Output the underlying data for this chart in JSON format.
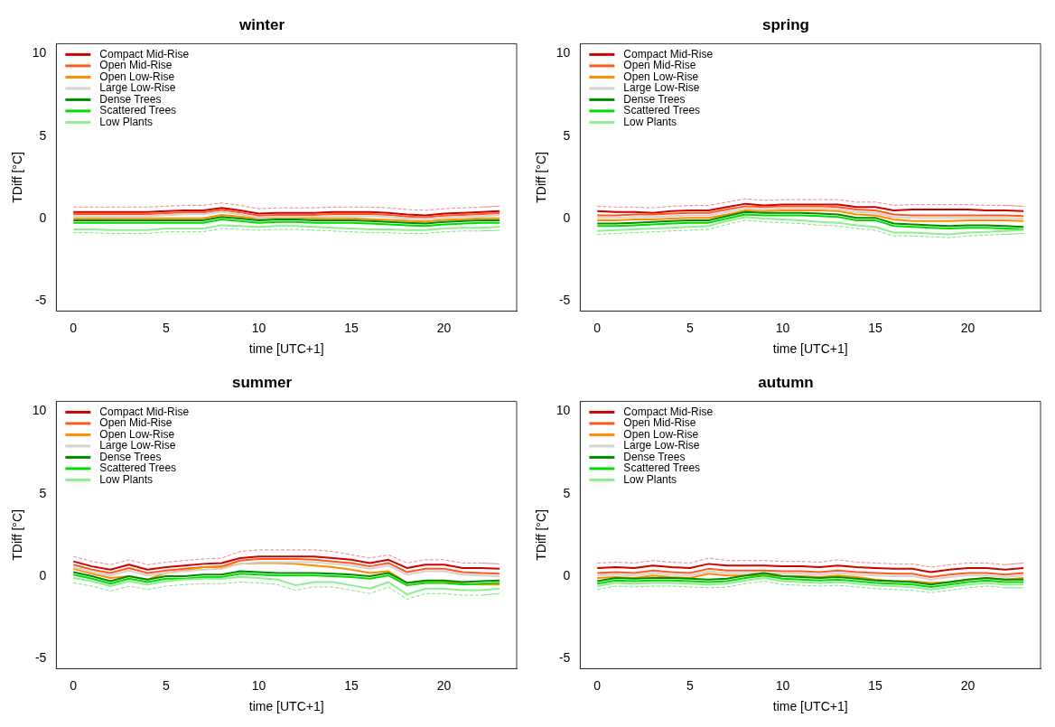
{
  "chart_data": [
    {
      "type": "line",
      "title": "winter",
      "xlabel": "time [UTC+1]",
      "ylabel": "TDiff [°C]",
      "x": [
        0,
        1,
        2,
        3,
        4,
        5,
        6,
        7,
        8,
        9,
        10,
        11,
        12,
        13,
        14,
        15,
        16,
        17,
        18,
        19,
        20,
        21,
        22,
        23
      ],
      "xlim": [
        -0.92,
        23.92
      ],
      "xticks": [
        0,
        5,
        10,
        15,
        20
      ],
      "ylim": [
        -5.6,
        10.6
      ],
      "yticks": [
        -5,
        0,
        5,
        10
      ],
      "grid": false,
      "legend": "top left",
      "line_style": "solid",
      "series": [
        {
          "name": "Compact Mid-Rise",
          "color": "#cc0000",
          "values": [
            0.4,
            0.4,
            0.4,
            0.4,
            0.4,
            0.45,
            0.5,
            0.5,
            0.65,
            0.5,
            0.3,
            0.35,
            0.35,
            0.35,
            0.4,
            0.4,
            0.4,
            0.35,
            0.25,
            0.2,
            0.3,
            0.35,
            0.4,
            0.45
          ]
        },
        {
          "name": "Open Mid-Rise",
          "color": "#ff5a1e",
          "values": [
            0.28,
            0.28,
            0.28,
            0.28,
            0.28,
            0.33,
            0.38,
            0.38,
            0.53,
            0.38,
            0.18,
            0.23,
            0.23,
            0.23,
            0.28,
            0.28,
            0.28,
            0.23,
            0.13,
            0.08,
            0.18,
            0.23,
            0.28,
            0.33
          ]
        },
        {
          "name": "Open Low-Rise",
          "color": "#ff8c00",
          "values": [
            0.02,
            0.02,
            0.02,
            0.02,
            0.02,
            0.02,
            0.02,
            0.02,
            0.22,
            0.12,
            0.02,
            0.07,
            0.07,
            0.02,
            0.02,
            0.02,
            -0.03,
            -0.08,
            -0.13,
            -0.18,
            -0.08,
            -0.03,
            0.02,
            0.02
          ]
        },
        {
          "name": "Large Low-Rise",
          "color": "#d3d3d3",
          "values": [
            0.16,
            0.16,
            0.16,
            0.16,
            0.16,
            0.21,
            0.26,
            0.26,
            0.41,
            0.26,
            0.06,
            0.11,
            0.11,
            0.11,
            0.16,
            0.16,
            0.16,
            0.11,
            0.01,
            -0.04,
            0.06,
            0.11,
            0.16,
            0.21
          ]
        },
        {
          "name": "Dense Trees",
          "color": "#008b00",
          "values": [
            -0.1,
            -0.1,
            -0.1,
            -0.1,
            -0.1,
            -0.1,
            -0.1,
            -0.1,
            0.1,
            0.0,
            -0.1,
            -0.05,
            -0.05,
            -0.1,
            -0.1,
            -0.1,
            -0.15,
            -0.2,
            -0.25,
            -0.3,
            -0.2,
            -0.15,
            -0.1,
            -0.1
          ]
        },
        {
          "name": "Scattered Trees",
          "color": "#00dd00",
          "values": [
            -0.25,
            -0.25,
            -0.25,
            -0.25,
            -0.25,
            -0.25,
            -0.25,
            -0.25,
            -0.05,
            -0.15,
            -0.25,
            -0.2,
            -0.2,
            -0.25,
            -0.25,
            -0.25,
            -0.3,
            -0.35,
            -0.4,
            -0.45,
            -0.35,
            -0.3,
            -0.25,
            -0.25
          ]
        },
        {
          "name": "Low Plants",
          "color": "#90ee90",
          "values": [
            -0.65,
            -0.65,
            -0.7,
            -0.7,
            -0.7,
            -0.6,
            -0.6,
            -0.6,
            -0.4,
            -0.45,
            -0.5,
            -0.45,
            -0.45,
            -0.5,
            -0.55,
            -0.6,
            -0.65,
            -0.65,
            -0.7,
            -0.7,
            -0.6,
            -0.55,
            -0.55,
            -0.5
          ]
        },
        {
          "color": "#ee8888",
          "line_style": "dashed",
          "values": [
            0.7,
            0.7,
            0.7,
            0.7,
            0.7,
            0.75,
            0.8,
            0.8,
            0.95,
            0.8,
            0.6,
            0.65,
            0.65,
            0.65,
            0.7,
            0.7,
            0.7,
            0.65,
            0.55,
            0.5,
            0.6,
            0.65,
            0.7,
            0.75
          ]
        },
        {
          "color": "#80e080",
          "line_style": "dashed",
          "values": [
            -0.85,
            -0.85,
            -0.9,
            -0.9,
            -0.9,
            -0.8,
            -0.8,
            -0.8,
            -0.6,
            -0.65,
            -0.7,
            -0.65,
            -0.65,
            -0.7,
            -0.75,
            -0.8,
            -0.85,
            -0.85,
            -0.9,
            -0.9,
            -0.8,
            -0.75,
            -0.75,
            -0.7
          ]
        }
      ]
    },
    {
      "type": "line",
      "title": "spring",
      "xlabel": "time [UTC+1]",
      "ylabel": "TDiff [°C]",
      "x": [
        0,
        1,
        2,
        3,
        4,
        5,
        6,
        7,
        8,
        9,
        10,
        11,
        12,
        13,
        14,
        15,
        16,
        17,
        18,
        19,
        20,
        21,
        22,
        23
      ],
      "xlim": [
        -0.92,
        23.92
      ],
      "xticks": [
        0,
        5,
        10,
        15,
        20
      ],
      "ylim": [
        -5.6,
        10.6
      ],
      "yticks": [
        -5,
        0,
        5,
        10
      ],
      "grid": false,
      "legend": "top left",
      "line_style": "solid",
      "series": [
        {
          "name": "Compact Mid-Rise",
          "color": "#cc0000",
          "values": [
            0.45,
            0.4,
            0.4,
            0.35,
            0.45,
            0.5,
            0.5,
            0.7,
            0.9,
            0.8,
            0.85,
            0.85,
            0.85,
            0.85,
            0.7,
            0.7,
            0.5,
            0.55,
            0.55,
            0.55,
            0.55,
            0.5,
            0.5,
            0.45
          ]
        },
        {
          "name": "Open Mid-Rise",
          "color": "#ff5a1e",
          "values": [
            0.2,
            0.2,
            0.25,
            0.25,
            0.3,
            0.35,
            0.35,
            0.55,
            0.75,
            0.7,
            0.75,
            0.75,
            0.75,
            0.7,
            0.55,
            0.5,
            0.25,
            0.2,
            0.2,
            0.2,
            0.2,
            0.2,
            0.2,
            0.15
          ]
        },
        {
          "name": "Open Low-Rise",
          "color": "#ff8c00",
          "values": [
            -0.1,
            -0.1,
            -0.05,
            -0.05,
            0.0,
            0.05,
            0.05,
            0.25,
            0.5,
            0.45,
            0.5,
            0.5,
            0.5,
            0.45,
            0.25,
            0.2,
            -0.05,
            -0.15,
            -0.15,
            -0.15,
            -0.1,
            -0.1,
            -0.1,
            -0.15
          ]
        },
        {
          "name": "Large Low-Rise",
          "color": "#d3d3d3",
          "values": [
            0.05,
            0.05,
            0.1,
            0.1,
            0.15,
            0.2,
            0.2,
            0.4,
            0.62,
            0.57,
            0.62,
            0.62,
            0.62,
            0.57,
            0.4,
            0.35,
            0.1,
            0.05,
            0.05,
            0.05,
            0.05,
            0.05,
            0.05,
            0.0
          ]
        },
        {
          "name": "Dense Trees",
          "color": "#008b00",
          "values": [
            -0.3,
            -0.3,
            -0.25,
            -0.2,
            -0.15,
            -0.1,
            -0.1,
            0.15,
            0.4,
            0.35,
            0.35,
            0.35,
            0.3,
            0.25,
            0.05,
            0.05,
            -0.3,
            -0.35,
            -0.4,
            -0.45,
            -0.4,
            -0.4,
            -0.45,
            -0.5
          ]
        },
        {
          "name": "Scattered Trees",
          "color": "#00dd00",
          "values": [
            -0.45,
            -0.45,
            -0.4,
            -0.35,
            -0.3,
            -0.25,
            -0.25,
            0.0,
            0.25,
            0.2,
            0.2,
            0.2,
            0.15,
            0.1,
            -0.1,
            -0.1,
            -0.45,
            -0.5,
            -0.55,
            -0.6,
            -0.55,
            -0.55,
            -0.6,
            -0.65
          ]
        },
        {
          "name": "Low Plants",
          "color": "#90ee90",
          "values": [
            -0.75,
            -0.7,
            -0.65,
            -0.6,
            -0.55,
            -0.5,
            -0.45,
            -0.15,
            0.1,
            0.0,
            -0.05,
            -0.1,
            -0.2,
            -0.25,
            -0.4,
            -0.5,
            -0.85,
            -0.85,
            -0.9,
            -0.95,
            -0.85,
            -0.8,
            -0.75,
            -0.7
          ]
        },
        {
          "color": "#ee8888",
          "line_style": "dashed",
          "values": [
            0.75,
            0.7,
            0.7,
            0.65,
            0.75,
            0.8,
            0.8,
            1.0,
            1.2,
            1.1,
            1.15,
            1.15,
            1.15,
            1.15,
            1.0,
            1.0,
            0.8,
            0.85,
            0.85,
            0.85,
            0.85,
            0.8,
            0.8,
            0.75
          ]
        },
        {
          "color": "#80e080",
          "line_style": "dashed",
          "values": [
            -0.95,
            -0.9,
            -0.85,
            -0.8,
            -0.75,
            -0.7,
            -0.65,
            -0.35,
            -0.1,
            -0.2,
            -0.25,
            -0.3,
            -0.4,
            -0.45,
            -0.6,
            -0.7,
            -1.05,
            -1.05,
            -1.1,
            -1.15,
            -1.05,
            -1.0,
            -0.95,
            -0.9
          ]
        }
      ]
    },
    {
      "type": "line",
      "title": "summer",
      "xlabel": "time [UTC+1]",
      "ylabel": "TDiff [°C]",
      "x": [
        0,
        1,
        2,
        3,
        4,
        5,
        6,
        7,
        8,
        9,
        10,
        11,
        12,
        13,
        14,
        15,
        16,
        17,
        18,
        19,
        20,
        21,
        22,
        23
      ],
      "xlim": [
        -0.92,
        23.92
      ],
      "xticks": [
        0,
        5,
        10,
        15,
        20
      ],
      "ylim": [
        -5.6,
        10.6
      ],
      "yticks": [
        -5,
        0,
        5,
        10
      ],
      "grid": false,
      "legend": "top left",
      "line_style": "solid",
      "series": [
        {
          "name": "Compact Mid-Rise",
          "color": "#cc0000",
          "values": [
            0.9,
            0.6,
            0.4,
            0.7,
            0.4,
            0.55,
            0.65,
            0.75,
            0.8,
            1.1,
            1.2,
            1.2,
            1.2,
            1.2,
            1.1,
            1.0,
            0.8,
            1.0,
            0.5,
            0.7,
            0.7,
            0.5,
            0.5,
            0.45
          ]
        },
        {
          "name": "Open Mid-Rise",
          "color": "#ff5a1e",
          "values": [
            0.7,
            0.4,
            0.2,
            0.5,
            0.2,
            0.35,
            0.45,
            0.55,
            0.6,
            0.95,
            1.05,
            1.05,
            1.05,
            1.0,
            0.9,
            0.8,
            0.6,
            0.8,
            0.25,
            0.45,
            0.45,
            0.25,
            0.2,
            0.15
          ]
        },
        {
          "name": "Open Low-Rise",
          "color": "#ff8c00",
          "values": [
            0.45,
            0.15,
            -0.1,
            0.0,
            -0.2,
            0.2,
            0.35,
            0.55,
            0.55,
            0.75,
            0.8,
            0.8,
            0.75,
            0.65,
            0.55,
            0.4,
            0.2,
            0.3,
            -0.4,
            -0.3,
            -0.3,
            -0.45,
            -0.5,
            -0.5
          ]
        },
        {
          "name": "Large Low-Rise",
          "color": "#d3d3d3",
          "values": [
            0.55,
            0.25,
            0.05,
            0.35,
            0.05,
            0.2,
            0.3,
            0.4,
            0.45,
            0.75,
            0.85,
            0.85,
            0.85,
            0.85,
            0.75,
            0.65,
            0.45,
            0.65,
            0.1,
            0.3,
            0.3,
            0.1,
            0.05,
            0.0
          ]
        },
        {
          "name": "Dense Trees",
          "color": "#008b00",
          "values": [
            0.25,
            0.0,
            -0.3,
            0.0,
            -0.2,
            0.0,
            0.0,
            0.1,
            0.1,
            0.3,
            0.25,
            0.2,
            0.2,
            0.2,
            0.15,
            0.1,
            0.0,
            0.2,
            -0.4,
            -0.25,
            -0.25,
            -0.35,
            -0.3,
            -0.25
          ]
        },
        {
          "name": "Scattered Trees",
          "color": "#00dd00",
          "values": [
            0.1,
            -0.15,
            -0.45,
            -0.15,
            -0.35,
            -0.15,
            -0.15,
            -0.05,
            -0.05,
            0.15,
            0.1,
            0.05,
            0.05,
            0.05,
            0.0,
            -0.05,
            -0.15,
            0.05,
            -0.55,
            -0.4,
            -0.4,
            -0.5,
            -0.45,
            -0.4
          ]
        },
        {
          "name": "Low Plants",
          "color": "#90ee90",
          "values": [
            -0.1,
            -0.3,
            -0.6,
            -0.3,
            -0.5,
            -0.3,
            -0.2,
            -0.15,
            -0.15,
            -0.05,
            -0.1,
            -0.2,
            -0.55,
            -0.35,
            -0.35,
            -0.55,
            -0.75,
            -0.35,
            -1.1,
            -0.75,
            -0.75,
            -0.85,
            -0.85,
            -0.75
          ]
        },
        {
          "color": "#ee8888",
          "line_style": "dashed",
          "values": [
            1.2,
            0.9,
            0.7,
            1.0,
            0.7,
            0.85,
            0.95,
            1.05,
            1.1,
            1.5,
            1.6,
            1.6,
            1.6,
            1.6,
            1.5,
            1.3,
            1.1,
            1.3,
            0.8,
            1.0,
            1.0,
            0.8,
            0.8,
            0.75
          ]
        },
        {
          "color": "#80e080",
          "line_style": "dashed",
          "values": [
            -0.4,
            -0.6,
            -0.9,
            -0.6,
            -0.8,
            -0.6,
            -0.5,
            -0.45,
            -0.45,
            -0.35,
            -0.4,
            -0.5,
            -0.85,
            -0.65,
            -0.65,
            -0.85,
            -1.05,
            -0.65,
            -1.4,
            -1.05,
            -1.05,
            -1.15,
            -1.15,
            -1.05
          ]
        }
      ]
    },
    {
      "type": "line",
      "title": "autumn",
      "xlabel": "time [UTC+1]",
      "ylabel": "TDiff [°C]",
      "x": [
        0,
        1,
        2,
        3,
        4,
        5,
        6,
        7,
        8,
        9,
        10,
        11,
        12,
        13,
        14,
        15,
        16,
        17,
        18,
        19,
        20,
        21,
        22,
        23
      ],
      "xlim": [
        -0.92,
        23.92
      ],
      "xticks": [
        0,
        5,
        10,
        15,
        20
      ],
      "ylim": [
        -5.6,
        10.6
      ],
      "yticks": [
        -5,
        0,
        5,
        10
      ],
      "grid": false,
      "legend": "top left",
      "line_style": "solid",
      "series": [
        {
          "name": "Compact Mid-Rise",
          "color": "#cc0000",
          "values": [
            0.5,
            0.55,
            0.5,
            0.65,
            0.55,
            0.5,
            0.75,
            0.65,
            0.65,
            0.65,
            0.6,
            0.6,
            0.55,
            0.65,
            0.55,
            0.5,
            0.45,
            0.45,
            0.25,
            0.4,
            0.5,
            0.5,
            0.4,
            0.5
          ]
        },
        {
          "name": "Open Mid-Rise",
          "color": "#ff5a1e",
          "values": [
            0.2,
            0.25,
            0.2,
            0.35,
            0.25,
            0.2,
            0.45,
            0.35,
            0.35,
            0.35,
            0.3,
            0.3,
            0.25,
            0.35,
            0.25,
            0.2,
            0.15,
            0.15,
            -0.05,
            0.1,
            0.2,
            0.2,
            0.1,
            0.2
          ]
        },
        {
          "name": "Open Low-Rise",
          "color": "#ff8c00",
          "values": [
            -0.1,
            -0.05,
            -0.1,
            0.05,
            -0.05,
            -0.1,
            0.15,
            0.05,
            0.05,
            0.05,
            0.0,
            0.0,
            -0.05,
            0.05,
            -0.05,
            -0.2,
            -0.3,
            -0.3,
            -0.4,
            -0.35,
            -0.2,
            -0.1,
            -0.2,
            -0.1
          ]
        },
        {
          "name": "Large Low-Rise",
          "color": "#d3d3d3",
          "values": [
            0.05,
            0.1,
            0.05,
            0.2,
            0.1,
            0.05,
            0.3,
            0.2,
            0.2,
            0.2,
            0.15,
            0.15,
            0.1,
            0.2,
            0.1,
            0.05,
            0.0,
            0.0,
            -0.2,
            -0.05,
            0.05,
            0.05,
            -0.05,
            0.05
          ]
        },
        {
          "name": "Dense Trees",
          "color": "#008b00",
          "values": [
            -0.3,
            -0.1,
            -0.15,
            -0.1,
            -0.1,
            -0.15,
            -0.2,
            -0.15,
            0.05,
            0.2,
            0.0,
            -0.05,
            -0.1,
            -0.05,
            -0.15,
            -0.25,
            -0.3,
            -0.35,
            -0.5,
            -0.35,
            -0.2,
            -0.1,
            -0.2,
            -0.2
          ]
        },
        {
          "name": "Scattered Trees",
          "color": "#00dd00",
          "values": [
            -0.45,
            -0.25,
            -0.3,
            -0.25,
            -0.25,
            -0.3,
            -0.35,
            -0.3,
            -0.1,
            0.05,
            -0.15,
            -0.2,
            -0.25,
            -0.2,
            -0.3,
            -0.4,
            -0.45,
            -0.5,
            -0.65,
            -0.5,
            -0.35,
            -0.25,
            -0.35,
            -0.35
          ]
        },
        {
          "name": "Low Plants",
          "color": "#90ee90",
          "values": [
            -0.6,
            -0.4,
            -0.45,
            -0.4,
            -0.4,
            -0.45,
            -0.5,
            -0.45,
            -0.25,
            -0.1,
            -0.3,
            -0.35,
            -0.4,
            -0.35,
            -0.45,
            -0.55,
            -0.6,
            -0.65,
            -0.8,
            -0.65,
            -0.5,
            -0.4,
            -0.5,
            -0.5
          ]
        },
        {
          "color": "#ee8888",
          "line_style": "dashed",
          "values": [
            0.8,
            0.85,
            0.8,
            0.95,
            0.85,
            0.8,
            1.1,
            0.95,
            0.95,
            0.95,
            0.9,
            0.9,
            0.85,
            1.0,
            0.85,
            0.8,
            0.75,
            0.75,
            0.55,
            0.7,
            0.8,
            0.8,
            0.7,
            0.8
          ]
        },
        {
          "color": "#80e080",
          "line_style": "dashed",
          "values": [
            -0.8,
            -0.6,
            -0.65,
            -0.6,
            -0.6,
            -0.65,
            -0.7,
            -0.65,
            -0.45,
            -0.3,
            -0.5,
            -0.55,
            -0.6,
            -0.55,
            -0.65,
            -0.75,
            -0.8,
            -0.85,
            -1.0,
            -0.85,
            -0.7,
            -0.6,
            -0.7,
            -0.7
          ]
        }
      ]
    }
  ]
}
